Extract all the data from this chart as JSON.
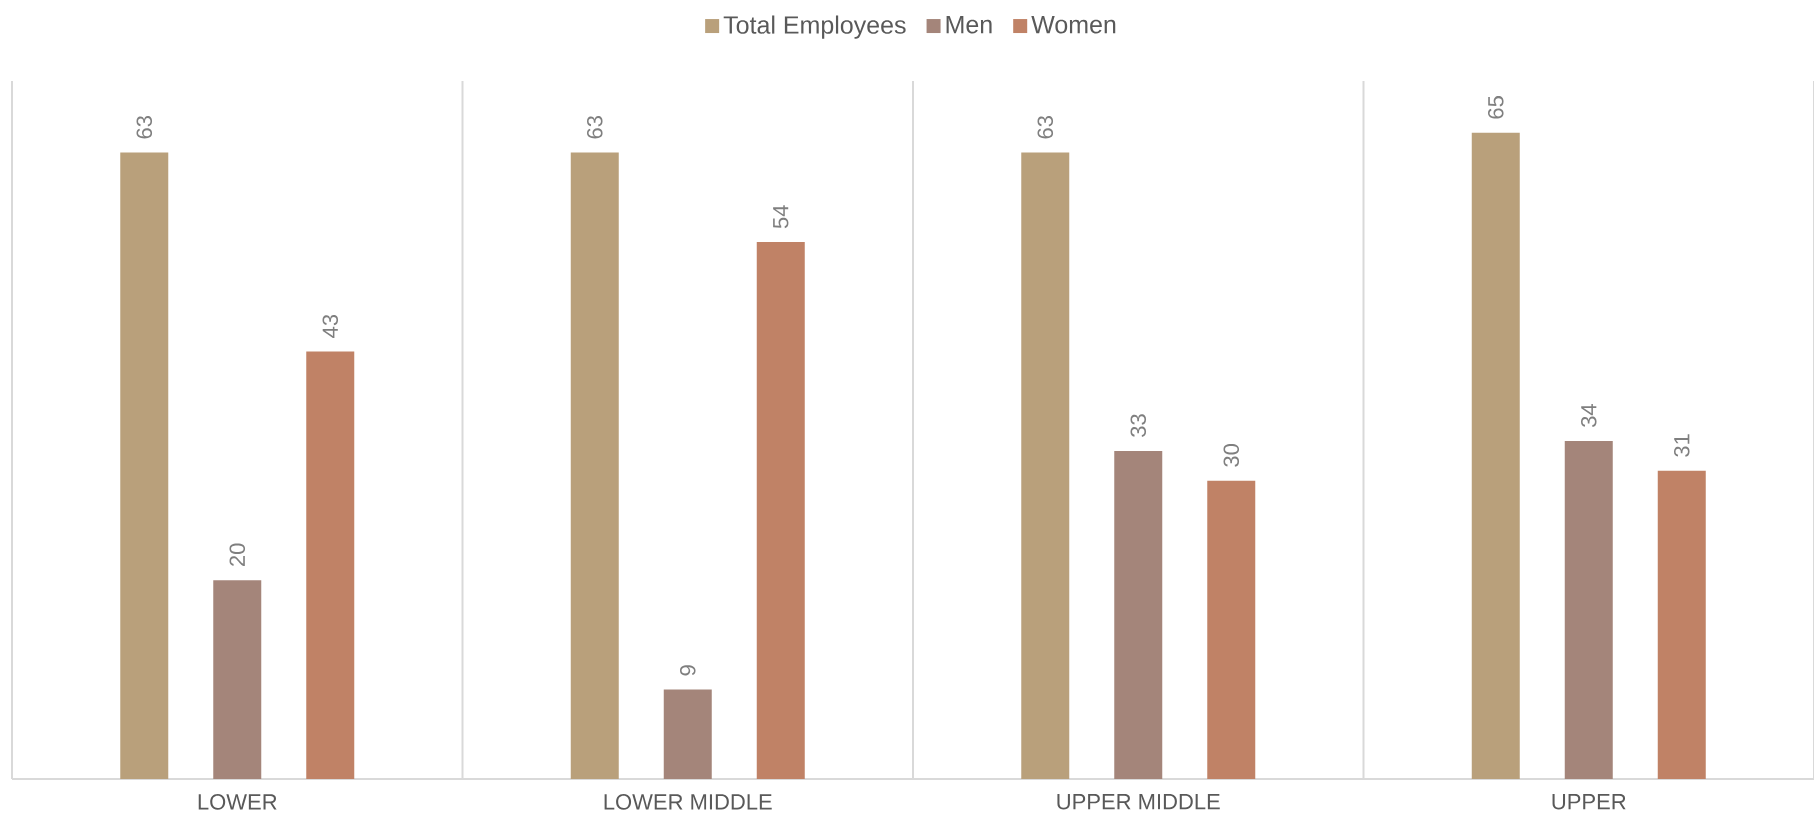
{
  "chart_data": {
    "type": "bar",
    "categories": [
      "LOWER",
      "LOWER MIDDLE",
      "UPPER MIDDLE",
      "UPPER"
    ],
    "series": [
      {
        "name": "Total Employees",
        "color": "#b9a07b",
        "values": [
          63,
          63,
          63,
          65
        ]
      },
      {
        "name": "Men",
        "color": "#a4857a",
        "values": [
          20,
          9,
          33,
          34
        ]
      },
      {
        "name": "Women",
        "color": "#c08266",
        "values": [
          43,
          54,
          30,
          31
        ]
      }
    ],
    "data_labels": true,
    "grid": "x",
    "legend": "top"
  }
}
